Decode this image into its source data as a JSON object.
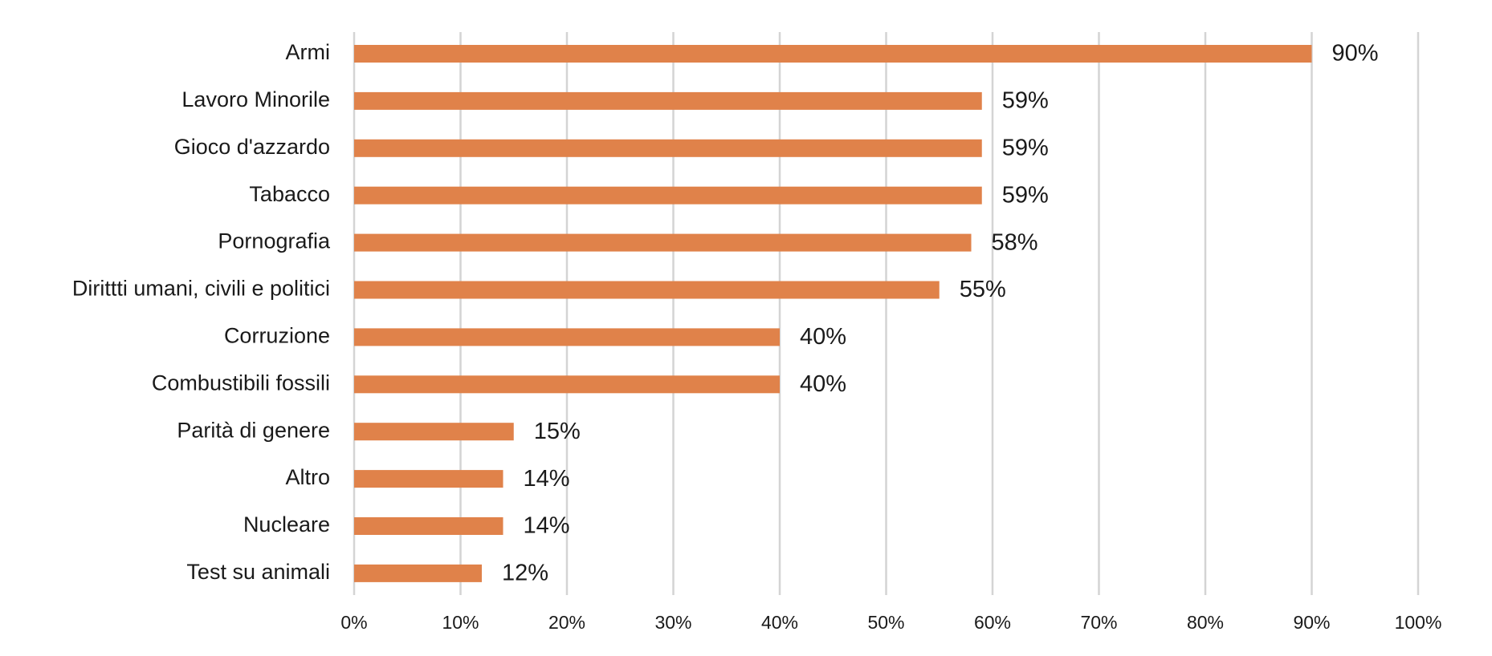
{
  "chart_data": {
    "type": "bar",
    "orientation": "horizontal",
    "categories": [
      "Armi",
      "Lavoro Minorile",
      "Gioco d'azzardo",
      "Tabacco",
      "Pornografia",
      "Dirittti umani, civili e politici",
      "Corruzione",
      "Combustibili fossili",
      "Parità di genere",
      "Altro",
      "Nucleare",
      "Test su animali"
    ],
    "values": [
      90,
      59,
      59,
      59,
      58,
      55,
      40,
      40,
      15,
      14,
      14,
      12
    ],
    "data_labels": [
      "90%",
      "59%",
      "59%",
      "59%",
      "58%",
      "55%",
      "40%",
      "40%",
      "15%",
      "14%",
      "14%",
      "12%"
    ],
    "x_ticks": [
      "0%",
      "10%",
      "20%",
      "30%",
      "40%",
      "50%",
      "60%",
      "70%",
      "80%",
      "90%",
      "100%"
    ],
    "xlim": [
      0,
      100
    ],
    "grid": "vertical",
    "legend": "none",
    "title": "",
    "xlabel": "",
    "ylabel": "",
    "bar_color": "#E0824A",
    "grid_color": "#D4D4D4"
  }
}
